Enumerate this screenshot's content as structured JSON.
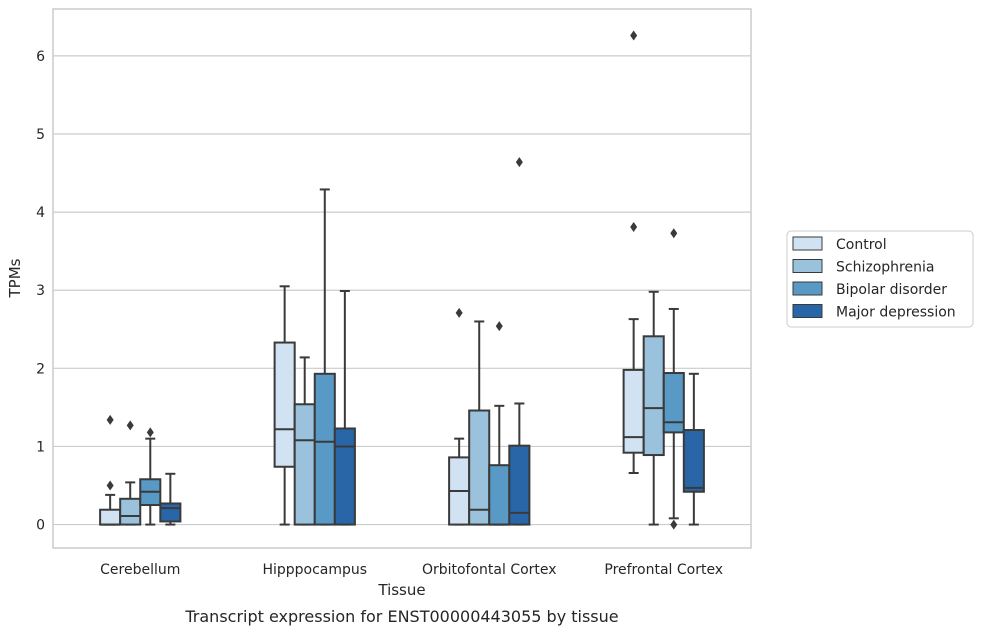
{
  "chart_data": {
    "type": "box",
    "title": "",
    "caption": "Transcript expression for ENST00000443055 by tissue",
    "xlabel": "Tissue",
    "ylabel": "TPMs",
    "ylim": [
      -0.3,
      6.6
    ],
    "yticks": [
      0,
      1,
      2,
      3,
      4,
      5,
      6
    ],
    "grid": "horizontal",
    "legend_position": "right",
    "categories": [
      "Cerebellum",
      "Hipppocampus",
      "Orbitofontal Cortex",
      "Prefrontal Cortex"
    ],
    "series": [
      {
        "name": "Control",
        "color": "#d1e2f2",
        "boxes": [
          {
            "whislo": 0,
            "q1": 0,
            "med": 0,
            "q3": 0.19,
            "whishi": 0.38,
            "fliers": [
              0.5,
              1.34
            ]
          },
          {
            "whislo": 0,
            "q1": 0.74,
            "med": 1.22,
            "q3": 2.33,
            "whishi": 3.05,
            "fliers": []
          },
          {
            "whislo": 0,
            "q1": 0,
            "med": 0.43,
            "q3": 0.86,
            "whishi": 1.1,
            "fliers": [
              2.71
            ]
          },
          {
            "whislo": 0.66,
            "q1": 0.92,
            "med": 1.12,
            "q3": 1.98,
            "whishi": 2.63,
            "fliers": [
              3.81,
              6.26
            ]
          }
        ]
      },
      {
        "name": "Schizophrenia",
        "color": "#9ac2dc",
        "boxes": [
          {
            "whislo": 0,
            "q1": 0,
            "med": 0.11,
            "q3": 0.33,
            "whishi": 0.54,
            "fliers": [
              1.27
            ]
          },
          {
            "whislo": 0,
            "q1": 0,
            "med": 1.08,
            "q3": 1.54,
            "whishi": 2.14,
            "fliers": []
          },
          {
            "whislo": 0,
            "q1": 0,
            "med": 0.19,
            "q3": 1.46,
            "whishi": 2.6,
            "fliers": []
          },
          {
            "whislo": 0,
            "q1": 0.89,
            "med": 1.49,
            "q3": 2.41,
            "whishi": 2.98,
            "fliers": []
          }
        ]
      },
      {
        "name": "Bipolar disorder",
        "color": "#5899c5",
        "boxes": [
          {
            "whislo": 0,
            "q1": 0.25,
            "med": 0.42,
            "q3": 0.58,
            "whishi": 1.1,
            "fliers": [
              1.18
            ]
          },
          {
            "whislo": 0,
            "q1": 0,
            "med": 1.06,
            "q3": 1.93,
            "whishi": 4.29,
            "fliers": []
          },
          {
            "whislo": 0,
            "q1": 0,
            "med": 0,
            "q3": 0.76,
            "whishi": 1.52,
            "fliers": [
              2.54
            ]
          },
          {
            "whislo": 0.08,
            "q1": 1.18,
            "med": 1.31,
            "q3": 1.94,
            "whishi": 2.76,
            "fliers": [
              0,
              3.73
            ]
          }
        ]
      },
      {
        "name": "Major depression",
        "color": "#2966a7",
        "boxes": [
          {
            "whislo": 0,
            "q1": 0.04,
            "med": 0.21,
            "q3": 0.27,
            "whishi": 0.65,
            "fliers": []
          },
          {
            "whislo": 0,
            "q1": 0,
            "med": 1.0,
            "q3": 1.23,
            "whishi": 2.99,
            "fliers": []
          },
          {
            "whislo": 0,
            "q1": 0,
            "med": 0.15,
            "q3": 1.01,
            "whishi": 1.55,
            "fliers": [
              4.64
            ]
          },
          {
            "whislo": 0,
            "q1": 0.42,
            "med": 0.47,
            "q3": 1.21,
            "whishi": 1.93,
            "fliers": []
          }
        ]
      }
    ]
  }
}
